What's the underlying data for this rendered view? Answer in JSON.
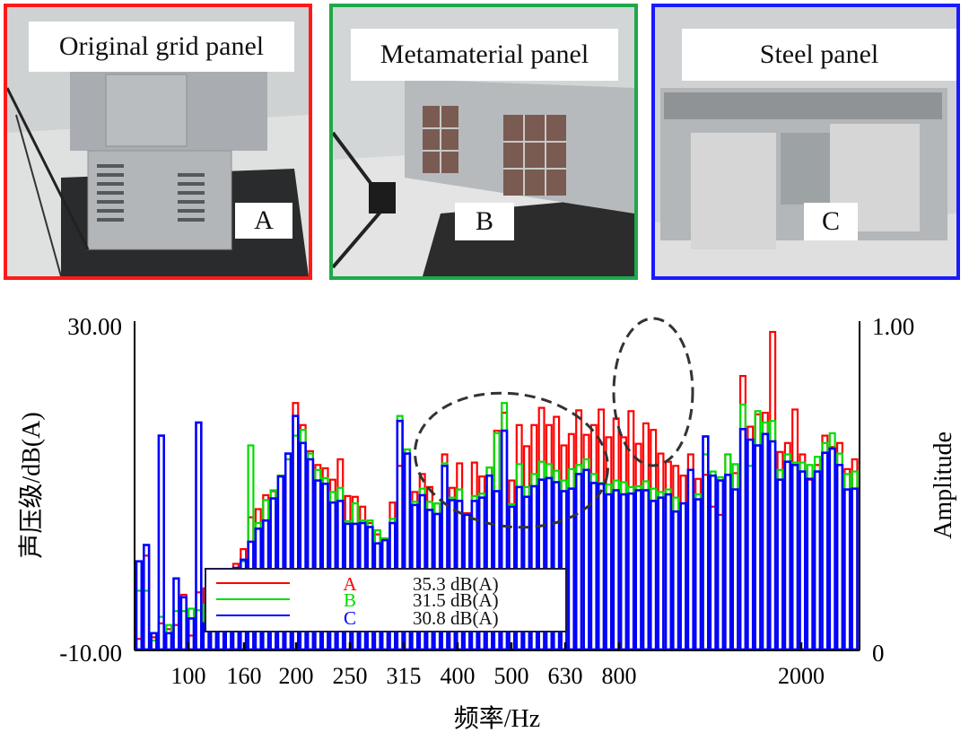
{
  "photos": [
    {
      "id": "A",
      "title": "Original grid panel",
      "letter": "A",
      "border_color": "#ff1a1a"
    },
    {
      "id": "B",
      "title": "Metamaterial panel",
      "letter": "B",
      "border_color": "#1fa84a"
    },
    {
      "id": "C",
      "title": "Steel panel",
      "letter": "C",
      "border_color": "#1a1aff"
    }
  ],
  "chart_data": {
    "type": "bar",
    "style": "overlaid hollow narrow-band bars",
    "title": "",
    "xlabel": "频率/Hz",
    "ylabel": "声压级/dB(A)",
    "y2label": "Amplitude",
    "ylim": [
      -10,
      30
    ],
    "y2lim": [
      0,
      1
    ],
    "y_ticks": [
      "30.00",
      "-10.00"
    ],
    "y2_ticks": [
      "1.00",
      "0"
    ],
    "x_ticks": [
      "100",
      "160",
      "200",
      "250",
      "315",
      "400",
      "500",
      "630",
      "800",
      "2000"
    ],
    "legend": {
      "placement": "bottom-left",
      "entries": [
        {
          "name": "A",
          "overall": "35.3 dB(A)",
          "color": "#ff0000"
        },
        {
          "name": "B",
          "overall": "31.5 dB(A)",
          "color": "#00dd00"
        },
        {
          "name": "C",
          "overall": "30.8 dB(A)",
          "color": "#0000ff"
        }
      ]
    },
    "annotations": [
      "dashed ellipse around 315–630 Hz region (A reduced in B/C)",
      "dashed ellipse around ~800 Hz peak"
    ],
    "series": [
      {
        "name": "A",
        "color": "#ff0000",
        "values": [
          -8.7,
          1.5,
          -8.5,
          -6.8,
          -7.5,
          -7.0,
          -3.3,
          -8.3,
          -3.0,
          -2.5,
          -1.2,
          -0.8,
          -0.2,
          0.5,
          2.3,
          6.2,
          7.2,
          8.9,
          9.4,
          11.3,
          13.3,
          20.2,
          17.5,
          14.3,
          12.6,
          12.2,
          10.8,
          13.3,
          8.8,
          8.7,
          7.5,
          5.5,
          4.1,
          3.6,
          8.0,
          12.5,
          14.5,
          9.3,
          11.5,
          9.9,
          7.9,
          13.9,
          9.8,
          12.8,
          6.7,
          12.9,
          11.2,
          12.3,
          16.8,
          19.0,
          10.7,
          17.5,
          14.9,
          17.5,
          19.6,
          17.5,
          18.5,
          15.0,
          16.4,
          19.3,
          16.3,
          17.5,
          19.4,
          16.0,
          18.3,
          16.0,
          19.2,
          15.2,
          17.7,
          16.9,
          14.0,
          13.0,
          12.5,
          11.3,
          13.9,
          10.9,
          11.4,
          7.5,
          6.5,
          13.9,
          11.6,
          23.5,
          17.3,
          18.8,
          19.0,
          28.9,
          14.2,
          15.3,
          19.4,
          13.9,
          10.8,
          12.6,
          16.2,
          14.8,
          15.3,
          12.1,
          13.3
        ]
      },
      {
        "name": "B",
        "color": "#00dd00",
        "values": [
          -2.8,
          -2.8,
          -8.9,
          -6.0,
          -7.0,
          -5.3,
          -5.3,
          -5.0,
          -5.2,
          -4.5,
          -1.1,
          -0.2,
          -0.5,
          -1.0,
          0.8,
          15.0,
          5.5,
          8.3,
          9.5,
          11.3,
          13.3,
          16.2,
          16.9,
          14.0,
          12.0,
          11.0,
          9.3,
          9.8,
          5.7,
          7.9,
          5.8,
          5.8,
          4.6,
          3.6,
          6.0,
          18.6,
          14.5,
          8.1,
          9.7,
          8.1,
          7.9,
          12.8,
          8.6,
          9.6,
          6.5,
          8.8,
          9.1,
          12.3,
          16.5,
          20.2,
          7.8,
          12.7,
          9.9,
          11.5,
          13.0,
          12.7,
          11.9,
          10.7,
          12.1,
          12.6,
          13.3,
          11.5,
          10.4,
          10.2,
          10.7,
          10.5,
          9.9,
          10.0,
          10.6,
          9.7,
          9.3,
          9.6,
          8.6,
          7.9,
          12.0,
          9.0,
          13.9,
          11.8,
          11.1,
          13.9,
          12.7,
          20.0,
          12.5,
          19.2,
          17.8,
          18.0,
          12.0,
          13.9,
          12.9,
          12.9,
          12.6,
          13.6,
          15.3,
          16.5,
          14.0,
          11.5,
          11.8
        ]
      },
      {
        "name": "C",
        "color": "#0000ff",
        "values": [
          0.8,
          2.8,
          -8.0,
          16.2,
          -8.0,
          -1.3,
          -3.6,
          -6.2,
          17.8,
          -6.8,
          -5.2,
          -3.0,
          -1.5,
          0.0,
          1.0,
          3.2,
          4.8,
          5.8,
          8.5,
          11.2,
          14.0,
          18.6,
          15.3,
          13.3,
          10.7,
          10.3,
          8.0,
          8.2,
          5.4,
          5.4,
          5.5,
          5.0,
          3.0,
          3.4,
          5.5,
          18.0,
          14.0,
          7.7,
          8.9,
          7.1,
          6.6,
          12.5,
          8.3,
          8.2,
          6.5,
          8.2,
          8.6,
          11.3,
          9.4,
          16.8,
          7.5,
          9.9,
          8.7,
          10.0,
          10.8,
          11.0,
          10.5,
          9.4,
          9.7,
          11.5,
          12.0,
          10.4,
          10.3,
          9.0,
          9.5,
          9.0,
          9.1,
          9.5,
          9.5,
          8.2,
          8.6,
          9.0,
          6.9,
          7.9,
          12.0,
          8.4,
          16.1,
          11.3,
          10.7,
          11.4,
          9.6,
          17.0,
          15.7,
          15.0,
          16.4,
          15.5,
          10.8,
          13.0,
          12.6,
          11.8,
          10.9,
          11.8,
          14.1,
          14.6,
          12.6,
          9.6,
          9.7
        ]
      }
    ]
  }
}
